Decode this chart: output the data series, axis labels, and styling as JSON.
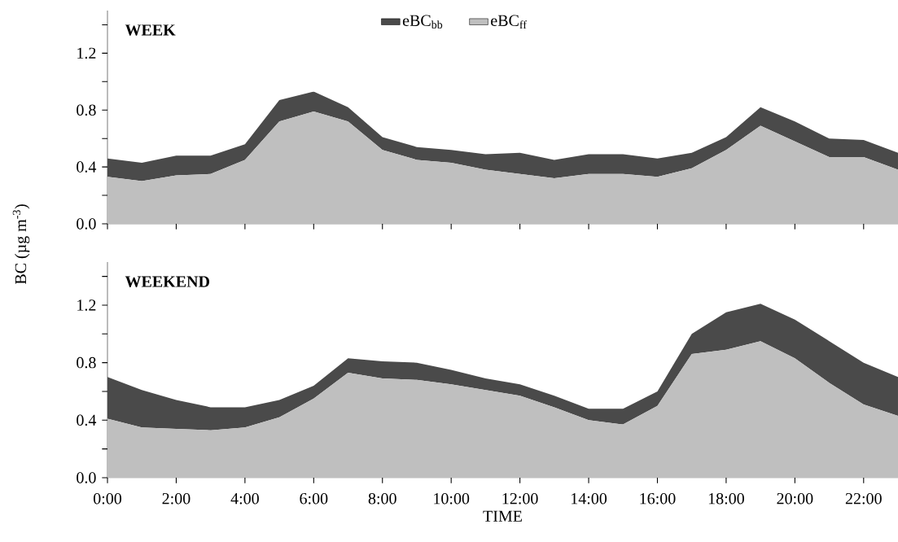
{
  "chart_data": [
    {
      "type": "area",
      "stacked": true,
      "title": "WEEK",
      "ylabel": "BC (µg m$^{-3}$)",
      "legend": "top",
      "tick_labels": "y",
      "x": [
        0,
        1,
        2,
        3,
        4,
        5,
        6,
        7,
        8,
        9,
        10,
        11,
        12,
        13,
        14,
        15,
        16,
        17,
        18,
        19,
        20,
        21,
        22,
        23
      ],
      "xlim": [
        0,
        23
      ],
      "ylim": [
        0,
        1.5
      ],
      "xticks": [
        {
          "value": 0,
          "label": null
        },
        {
          "value": 2,
          "label": null
        },
        {
          "value": 4,
          "label": null
        },
        {
          "value": 6,
          "label": null
        },
        {
          "value": 8,
          "label": null
        },
        {
          "value": 10,
          "label": null
        },
        {
          "value": 12,
          "label": null
        },
        {
          "value": 14,
          "label": null
        },
        {
          "value": 16,
          "label": null
        },
        {
          "value": 18,
          "label": null
        },
        {
          "value": 20,
          "label": null
        },
        {
          "value": 22,
          "label": null
        }
      ],
      "yticks": [
        {
          "value": 0,
          "label": "0.0"
        },
        {
          "value": 0.2,
          "label": null
        },
        0.4,
        {
          "value": 0.6,
          "label": null
        },
        0.8,
        {
          "value": 1.0,
          "label": null
        },
        1.2,
        {
          "value": 1.4,
          "label": null
        }
      ],
      "series": [
        {
          "name": "eBC$_{ff}$",
          "color": "#bfbfbf",
          "values": [
            0.33,
            0.3,
            0.34,
            0.35,
            0.45,
            0.72,
            0.79,
            0.72,
            0.52,
            0.45,
            0.43,
            0.38,
            0.35,
            0.32,
            0.35,
            0.35,
            0.33,
            0.39,
            0.52,
            0.69,
            0.58,
            0.47,
            0.47,
            0.38
          ]
        },
        {
          "name": "eBC$_{bb}$",
          "color": "#4a4a4a",
          "values": [
            0.13,
            0.13,
            0.14,
            0.13,
            0.11,
            0.15,
            0.14,
            0.1,
            0.09,
            0.09,
            0.09,
            0.11,
            0.15,
            0.13,
            0.14,
            0.14,
            0.13,
            0.11,
            0.09,
            0.13,
            0.14,
            0.13,
            0.12,
            0.12
          ]
        }
      ]
    },
    {
      "type": "area",
      "stacked": true,
      "title": "WEEKEND",
      "xlabel": "TIME",
      "x": [
        0,
        1,
        2,
        3,
        4,
        5,
        6,
        7,
        8,
        9,
        10,
        11,
        12,
        13,
        14,
        15,
        16,
        17,
        18,
        19,
        20,
        21,
        22,
        23
      ],
      "xlim": [
        0,
        23
      ],
      "ylim": [
        0,
        1.5
      ],
      "xticks": [
        {
          "value": 0,
          "label": "0:00"
        },
        {
          "value": 2,
          "label": "2:00"
        },
        {
          "value": 4,
          "label": "4:00"
        },
        {
          "value": 6,
          "label": "6:00"
        },
        {
          "value": 8,
          "label": "8:00"
        },
        {
          "value": 10,
          "label": "10:00"
        },
        {
          "value": 12,
          "label": "12:00"
        },
        {
          "value": 14,
          "label": "14:00"
        },
        {
          "value": 16,
          "label": "16:00"
        },
        {
          "value": 18,
          "label": "18:00"
        },
        {
          "value": 20,
          "label": "20:00"
        },
        {
          "value": 22,
          "label": "22:00"
        }
      ],
      "yticks": [
        {
          "value": 0,
          "label": "0.0"
        },
        {
          "value": 0.2,
          "label": null
        },
        0.4,
        {
          "value": 0.6,
          "label": null
        },
        0.8,
        {
          "value": 1.0,
          "label": null
        },
        1.2,
        {
          "value": 1.4,
          "label": null
        }
      ],
      "series": [
        {
          "color": "#bfbfbf",
          "values": [
            0.41,
            0.35,
            0.34,
            0.33,
            0.35,
            0.42,
            0.55,
            0.73,
            0.69,
            0.68,
            0.65,
            0.61,
            0.57,
            0.49,
            0.4,
            0.37,
            0.5,
            0.86,
            0.89,
            0.95,
            0.83,
            0.66,
            0.51,
            0.43
          ]
        },
        {
          "color": "#4a4a4a",
          "values": [
            0.29,
            0.26,
            0.2,
            0.16,
            0.14,
            0.12,
            0.09,
            0.1,
            0.12,
            0.12,
            0.1,
            0.08,
            0.08,
            0.08,
            0.08,
            0.11,
            0.1,
            0.14,
            0.26,
            0.26,
            0.27,
            0.29,
            0.29,
            0.27
          ]
        }
      ]
    }
  ]
}
